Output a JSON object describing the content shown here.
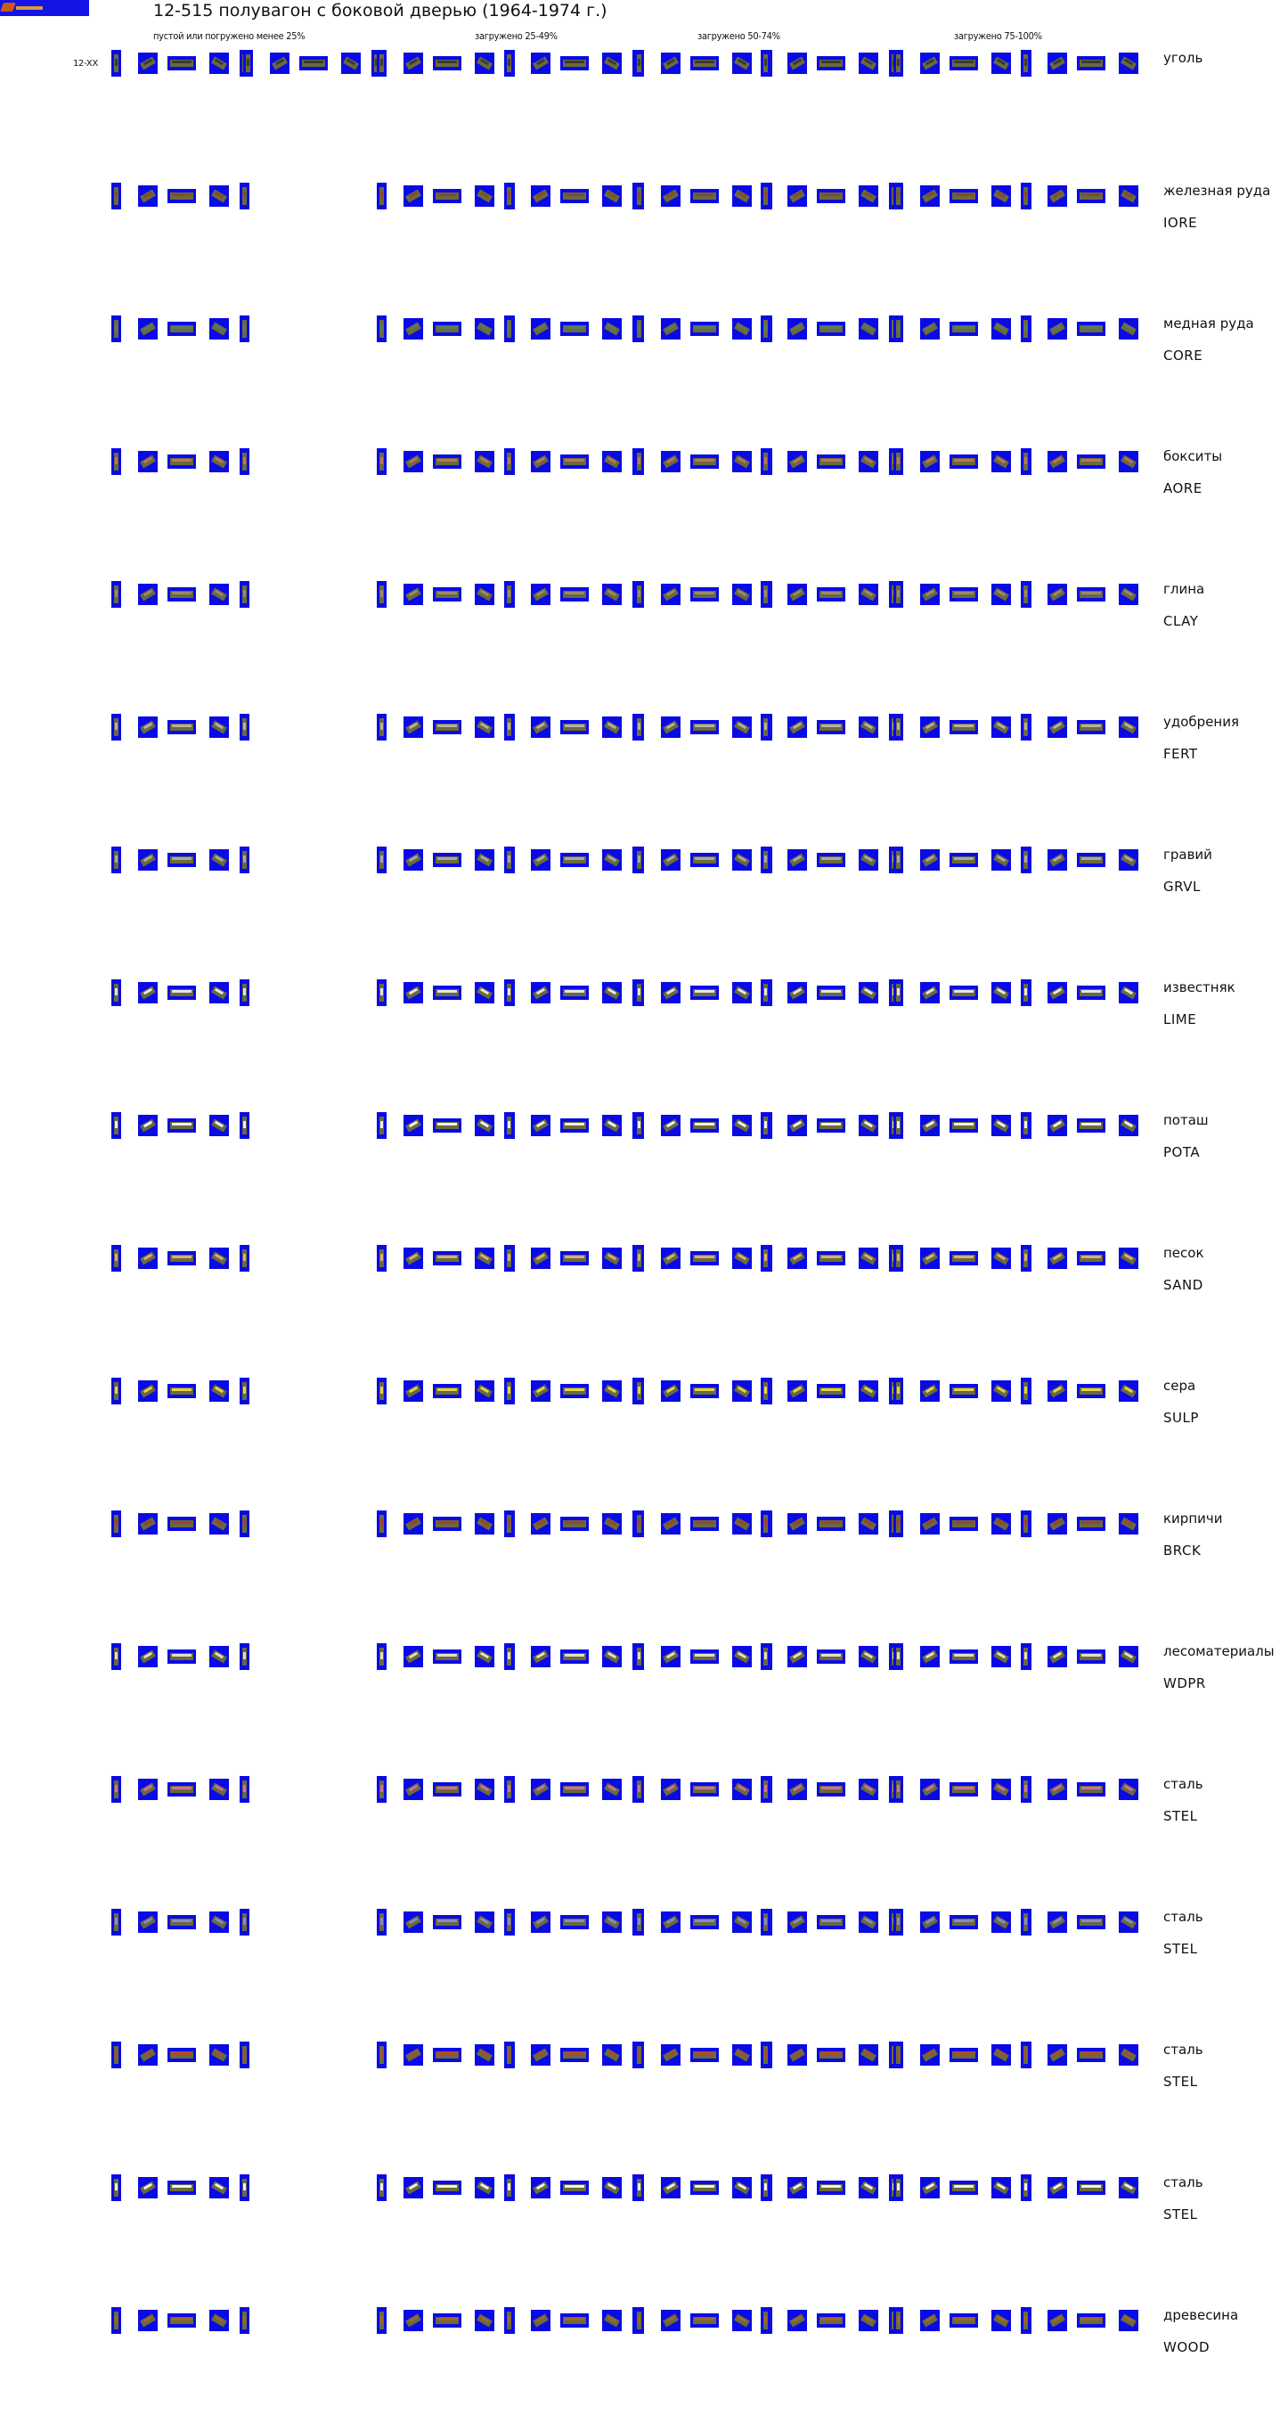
{
  "title": "12-515 полувагон с боковой дверью (1964-1974 г.)",
  "headers": [
    "пустой или погружено менее 25%",
    "загружено 25-49%",
    "загружено 50-74%",
    "загружено 75-100%"
  ],
  "row_label": "12-XX",
  "cargo": [
    {
      "name": "уголь",
      "code": "",
      "color": "#3a3a3a"
    },
    {
      "name": "железная руда",
      "code": "IORE",
      "color": "#8a4a2a"
    },
    {
      "name": "медная руда",
      "code": "CORE",
      "color": "#5a7a5a"
    },
    {
      "name": "бокситы",
      "code": "AORE",
      "color": "#c0735a"
    },
    {
      "name": "глина",
      "code": "CLAY",
      "color": "#9a8a6a"
    },
    {
      "name": "удобрения",
      "code": "FERT",
      "color": "#b8b0a0"
    },
    {
      "name": "гравий",
      "code": "GRVL",
      "color": "#a8a8a8"
    },
    {
      "name": "известняк",
      "code": "LIME",
      "color": "#e4e4e4"
    },
    {
      "name": "поташ",
      "code": "POTA",
      "color": "#f0f0f0"
    },
    {
      "name": "песок",
      "code": "SAND",
      "color": "#d9b070"
    },
    {
      "name": "сера",
      "code": "SULP",
      "color": "#e6d24a"
    },
    {
      "name": "кирпичи",
      "code": "BRCK",
      "color": "#a04030"
    },
    {
      "name": "лесоматериалы",
      "code": "WDPR",
      "color": "#e8dcc0"
    },
    {
      "name": "сталь",
      "code": "STEL",
      "color": "#d070a0"
    },
    {
      "name": "сталь",
      "code": "STEL",
      "color": "#8a8ac0"
    },
    {
      "name": "сталь",
      "code": "STEL",
      "color": "#b04a30"
    },
    {
      "name": "сталь",
      "code": "STEL",
      "color": "#f0f0f0"
    },
    {
      "name": "древесина",
      "code": "WOOD",
      "color": "#a0682a"
    }
  ],
  "colors": {
    "sprite_background": "#0a0ae6",
    "wagon_body": "#6a6a3a"
  }
}
